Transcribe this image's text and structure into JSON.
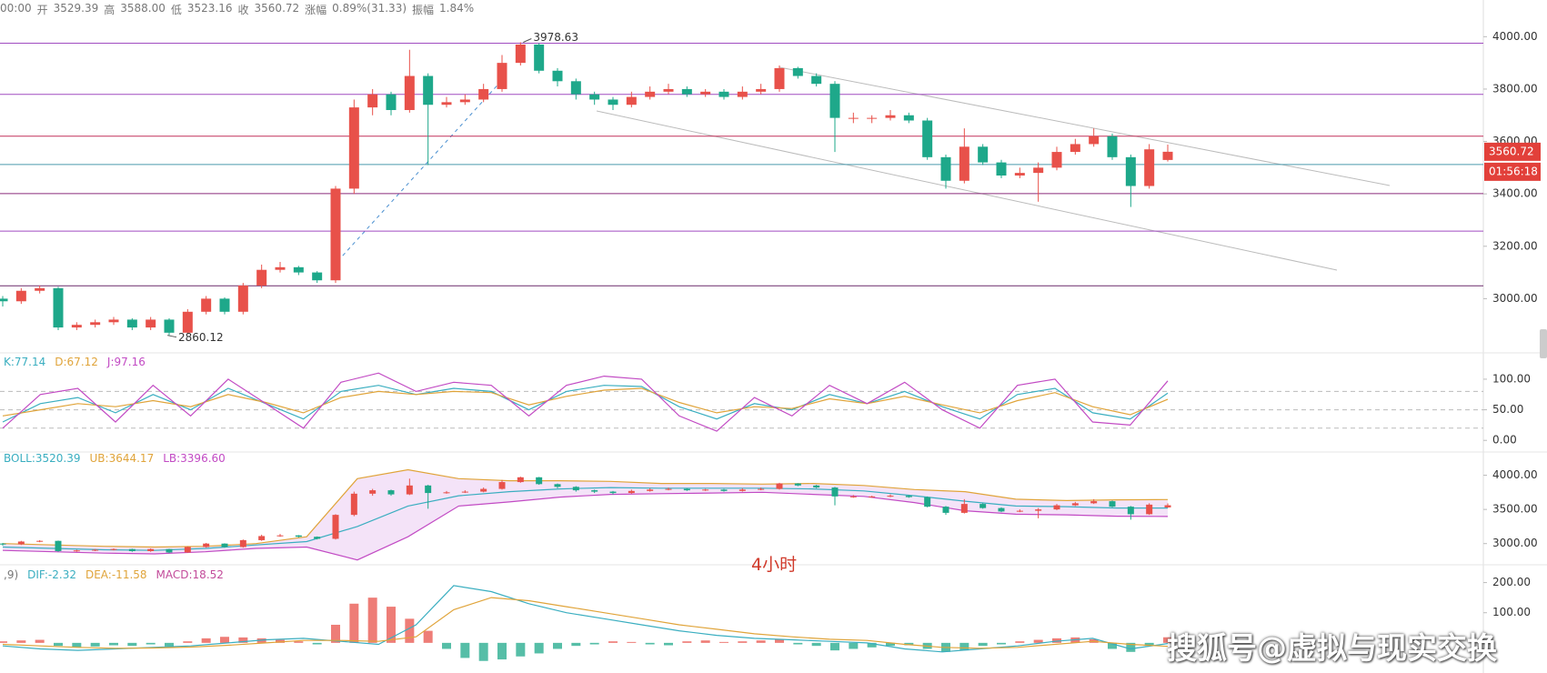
{
  "header": {
    "time": "00:00",
    "fields": [
      {
        "label": "开",
        "value": "3529.39"
      },
      {
        "label": "高",
        "value": "3588.00"
      },
      {
        "label": "低",
        "value": "3523.16"
      },
      {
        "label": "收",
        "value": "3560.72"
      },
      {
        "label": "涨幅",
        "value": "0.89%(31.33)"
      },
      {
        "label": "振幅",
        "value": "1.84%"
      }
    ]
  },
  "period": "4小时",
  "watermark": "搜狐号@虚拟与现实交换",
  "chart_data": [
    {
      "type": "candlestick",
      "up_color": "#e8514a",
      "down_color": "#1ea88a",
      "countdown": "01:56:18",
      "ylim": [
        2800,
        4140
      ],
      "yticks": [
        {
          "value": 3000,
          "label": "3000.00"
        },
        {
          "value": 3200,
          "label": "3200.00"
        },
        {
          "value": 3400,
          "label": "3400.00"
        },
        {
          "value": 3600,
          "label": "3600.00"
        },
        {
          "value": 3800,
          "label": "3800.00"
        },
        {
          "value": 4000,
          "label": "4000.00"
        }
      ],
      "levels": [
        {
          "value": 3975,
          "color": "#a04cc0"
        },
        {
          "value": 3780,
          "color": "#a04cc0"
        },
        {
          "value": 3620,
          "color": "#c2305a"
        },
        {
          "value": 3512,
          "color": "#4a9aae"
        },
        {
          "value": 3401,
          "color": "#8a2a7a"
        },
        {
          "value": 3258,
          "color": "#a04cc0"
        },
        {
          "value": 3049,
          "color": "#6a2a6a"
        }
      ],
      "open": [
        3000,
        2990,
        3030,
        3040,
        2890,
        2900,
        2910,
        2920,
        2890,
        2920,
        2870,
        2950,
        3000,
        2950,
        3050,
        3110,
        3120,
        3100,
        3070,
        3420,
        3730,
        3780,
        3720,
        3850,
        3740,
        3750,
        3760,
        3800,
        3900,
        3970,
        3870,
        3830,
        3780,
        3760,
        3740,
        3770,
        3790,
        3800,
        3780,
        3790,
        3770,
        3790,
        3800,
        3880,
        3850,
        3820,
        3690,
        3690,
        3690,
        3700,
        3680,
        3540,
        3450,
        3580,
        3520,
        3470,
        3480,
        3500,
        3560,
        3590,
        3620,
        3540,
        3430,
        3529.39
      ],
      "high": [
        3010,
        3040,
        3050,
        3045,
        2910,
        2920,
        2930,
        2925,
        2930,
        2925,
        2960,
        3010,
        3005,
        3060,
        3130,
        3140,
        3125,
        3105,
        3430,
        3760,
        3800,
        3790,
        3950,
        3860,
        3770,
        3780,
        3820,
        3930,
        3978.63,
        3975,
        3880,
        3840,
        3790,
        3770,
        3790,
        3810,
        3820,
        3810,
        3800,
        3800,
        3810,
        3820,
        3890,
        3885,
        3860,
        3830,
        3710,
        3700,
        3720,
        3710,
        3690,
        3550,
        3650,
        3590,
        3530,
        3500,
        3520,
        3580,
        3610,
        3650,
        3630,
        3550,
        3590,
        3588
      ],
      "low": [
        2970,
        2980,
        3020,
        2880,
        2880,
        2890,
        2900,
        2880,
        2880,
        2860.12,
        2865,
        2940,
        2940,
        2940,
        3040,
        3100,
        3090,
        3060,
        3060,
        3400,
        3700,
        3700,
        3710,
        3510,
        3730,
        3740,
        3750,
        3790,
        3890,
        3860,
        3810,
        3760,
        3740,
        3720,
        3730,
        3760,
        3780,
        3770,
        3770,
        3760,
        3760,
        3780,
        3790,
        3840,
        3810,
        3560,
        3670,
        3670,
        3680,
        3670,
        3530,
        3420,
        3440,
        3510,
        3460,
        3460,
        3370,
        3490,
        3550,
        3580,
        3530,
        3350,
        3420,
        3523.16
      ],
      "close": [
        2990,
        3030,
        3040,
        2890,
        2900,
        2910,
        2920,
        2890,
        2920,
        2870,
        2950,
        3000,
        2950,
        3050,
        3110,
        3120,
        3100,
        3070,
        3420,
        3730,
        3780,
        3720,
        3850,
        3740,
        3750,
        3760,
        3800,
        3900,
        3970,
        3870,
        3830,
        3780,
        3760,
        3740,
        3770,
        3790,
        3800,
        3780,
        3790,
        3770,
        3790,
        3800,
        3880,
        3850,
        3820,
        3690,
        3690,
        3690,
        3700,
        3680,
        3540,
        3450,
        3580,
        3520,
        3470,
        3480,
        3500,
        3560,
        3590,
        3620,
        3540,
        3430,
        3570,
        3560.72
      ]
    },
    {
      "type": "line",
      "ylim": [
        -16,
        140
      ],
      "yticks": [
        {
          "value": 0,
          "label": "0.00"
        },
        {
          "value": 50,
          "label": "50.00"
        },
        {
          "value": 100,
          "label": "100.00"
        }
      ],
      "guides": [
        20,
        50,
        80
      ],
      "series": [
        {
          "name": "K:77.14",
          "color": "#3aaec0",
          "values": [
            30,
            60,
            70,
            45,
            75,
            50,
            85,
            60,
            35,
            80,
            90,
            75,
            85,
            80,
            50,
            80,
            90,
            88,
            55,
            35,
            60,
            50,
            75,
            60,
            80,
            55,
            35,
            75,
            85,
            45,
            35,
            77.14
          ]
        },
        {
          "name": "D:67.12",
          "color": "#e0a43a",
          "values": [
            40,
            50,
            60,
            55,
            65,
            55,
            75,
            62,
            45,
            70,
            80,
            75,
            80,
            78,
            58,
            72,
            82,
            85,
            62,
            45,
            55,
            52,
            68,
            60,
            72,
            58,
            45,
            65,
            78,
            55,
            42,
            67.12
          ]
        },
        {
          "name": "J:97.16",
          "color": "#c24bc4",
          "values": [
            20,
            75,
            85,
            30,
            90,
            40,
            100,
            60,
            20,
            95,
            110,
            80,
            95,
            90,
            40,
            90,
            105,
            100,
            40,
            15,
            70,
            40,
            90,
            60,
            95,
            50,
            20,
            90,
            100,
            30,
            25,
            97.16
          ]
        }
      ]
    },
    {
      "type": "bollinger",
      "ylim": [
        2730,
        4300
      ],
      "yticks": [
        {
          "value": 3000,
          "label": "3000.00"
        },
        {
          "value": 3500,
          "label": "3500.00"
        },
        {
          "value": 4000,
          "label": "4000.00"
        }
      ],
      "fill_color": "#f1dcf6",
      "series": [
        {
          "name": "BOLL:3520.39",
          "color": "#3aaec0",
          "values": [
            2950,
            2930,
            2910,
            2900,
            2930,
            2980,
            3030,
            3250,
            3550,
            3700,
            3760,
            3800,
            3820,
            3810,
            3810,
            3810,
            3800,
            3770,
            3700,
            3620,
            3550,
            3540,
            3520,
            3520.39
          ]
        },
        {
          "name": "UB:3644.17",
          "color": "#e0a43a",
          "values": [
            3000,
            2980,
            2960,
            2950,
            2960,
            3000,
            3100,
            3950,
            4080,
            3950,
            3920,
            3920,
            3910,
            3880,
            3880,
            3870,
            3880,
            3850,
            3790,
            3760,
            3650,
            3630,
            3640,
            3644.17
          ]
        },
        {
          "name": "LB:3396.60",
          "color": "#c24bc4",
          "values": [
            2900,
            2880,
            2860,
            2850,
            2880,
            2930,
            2950,
            2760,
            3100,
            3550,
            3610,
            3680,
            3720,
            3730,
            3740,
            3750,
            3720,
            3690,
            3600,
            3480,
            3430,
            3420,
            3400,
            3396.6
          ]
        }
      ]
    },
    {
      "type": "macd",
      "ylim": [
        -100,
        250
      ],
      "legend_prefix": ",9)",
      "yticks": [
        {
          "value": 100,
          "label": "100.00"
        },
        {
          "value": 200,
          "label": "200.00"
        }
      ],
      "histogram": {
        "name": "MACD:18.52",
        "color": "#c24b9a",
        "up_color": "#e8514a",
        "down_color": "#1ea88a",
        "values": [
          5,
          8,
          10,
          -10,
          -15,
          -12,
          -8,
          -10,
          -5,
          -12,
          5,
          15,
          20,
          18,
          15,
          10,
          5,
          -5,
          60,
          130,
          150,
          120,
          80,
          40,
          -20,
          -50,
          -60,
          -55,
          -45,
          -35,
          -20,
          -10,
          -5,
          5,
          3,
          -5,
          -8,
          5,
          8,
          3,
          5,
          8,
          12,
          -5,
          -10,
          -25,
          -20,
          -15,
          -10,
          -8,
          -20,
          -30,
          -25,
          -10,
          -5,
          5,
          10,
          15,
          18,
          12,
          -20,
          -30,
          -10,
          18.52
        ]
      },
      "series": [
        {
          "name": "DIF:-2.32",
          "color": "#3aaec0",
          "values": [
            -10,
            -20,
            -25,
            -20,
            -15,
            -10,
            0,
            10,
            15,
            5,
            -5,
            60,
            190,
            170,
            130,
            100,
            80,
            60,
            40,
            25,
            15,
            10,
            5,
            0,
            -20,
            -30,
            -20,
            -10,
            5,
            15,
            -20,
            -2.32
          ]
        },
        {
          "name": "DEA:-11.58",
          "color": "#e0a43a",
          "values": [
            -5,
            -10,
            -15,
            -18,
            -17,
            -14,
            -8,
            0,
            8,
            8,
            5,
            20,
            110,
            150,
            140,
            120,
            100,
            80,
            60,
            45,
            30,
            20,
            12,
            8,
            -5,
            -15,
            -18,
            -15,
            -5,
            5,
            -5,
            -11.58
          ]
        }
      ]
    }
  ]
}
